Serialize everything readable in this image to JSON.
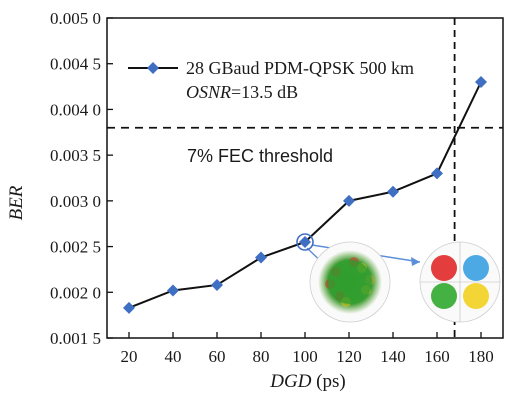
{
  "chart_data": {
    "type": "line",
    "xlabel": "DGD",
    "xlabel_unit": " (ps)",
    "ylabel": "BER",
    "x": [
      20,
      40,
      60,
      80,
      100,
      120,
      140,
      160,
      180
    ],
    "series": [
      {
        "name_main": "28 GBaud PDM-QPSK 500 km",
        "name_sub_italic": "OSNR",
        "name_sub_rest": "=13.5 dB",
        "x": [
          20,
          40,
          60,
          80,
          100,
          120,
          140,
          160,
          180
        ],
        "y": [
          0.00183,
          0.00202,
          0.00208,
          0.00238,
          0.00255,
          0.003,
          0.0031,
          0.0033,
          0.0043
        ],
        "color": "#3f6fc3",
        "line_color": "#111111",
        "marker": "diamond"
      }
    ],
    "xticks": [
      "20",
      "40",
      "60",
      "80",
      "100",
      "120",
      "140",
      "160",
      "180"
    ],
    "yticks": [
      {
        "value": 0.0015,
        "label": "0.001 5"
      },
      {
        "value": 0.002,
        "label": "0.002 0"
      },
      {
        "value": 0.0025,
        "label": "0.002 5"
      },
      {
        "value": 0.003,
        "label": "0.003 0"
      },
      {
        "value": 0.0035,
        "label": "0.003 5"
      },
      {
        "value": 0.004,
        "label": "0.004 0"
      },
      {
        "value": 0.0045,
        "label": "0.004 5"
      },
      {
        "value": 0.005,
        "label": "0.005 0"
      }
    ],
    "xlim": [
      10,
      190
    ],
    "ylim": [
      0.0015,
      0.005
    ],
    "threshold": {
      "y": 0.0038,
      "label": "7% FEC threshold"
    },
    "vertical_marker": {
      "x": 168
    },
    "highlight_point": {
      "x": 100,
      "y": 0.00255
    },
    "legend_position": "top-left",
    "grid": false,
    "insets": [
      {
        "name": "constellation-inset-single-cluster",
        "colors": [
          "#2f9e2f",
          "#d83030",
          "#e0c020",
          "#2f9e2f"
        ]
      },
      {
        "name": "constellation-inset-four-clusters",
        "colors": [
          "#e02828",
          "#3aa0e0",
          "#2faa2f",
          "#f2d020"
        ]
      }
    ]
  }
}
